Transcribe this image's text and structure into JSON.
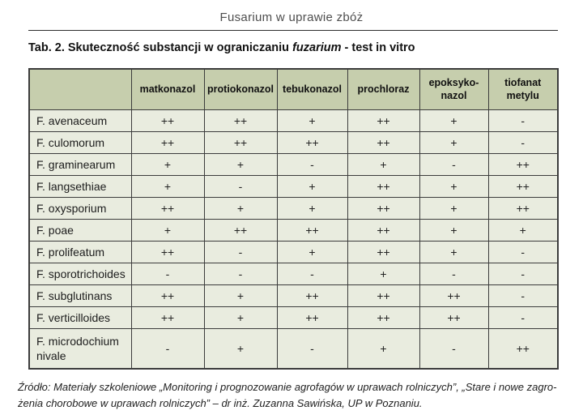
{
  "page_header": {
    "title": "Fusarium w uprawie zbóż"
  },
  "caption": {
    "part1": "Tab. 2. Skuteczność substancji w ograniczaniu ",
    "emphasis": "fuzarium",
    "part2": " - test in vitro"
  },
  "table": {
    "corner_label": "",
    "columns": [
      "matkonazol",
      "protiokonazol",
      "tebukonazol",
      "prochloraz",
      "epoksyko-\nnazol",
      "tiofanat\nmetylu"
    ],
    "rows": [
      {
        "name": "F. avenaceum",
        "values": [
          "++",
          "++",
          "+",
          "++",
          "+",
          "-"
        ]
      },
      {
        "name": "F. culomorum",
        "values": [
          "++",
          "++",
          "++",
          "++",
          "+",
          "-"
        ]
      },
      {
        "name": "F. graminearum",
        "values": [
          "+",
          "+",
          "-",
          "+",
          "-",
          "++"
        ]
      },
      {
        "name": "F. langsethiae",
        "values": [
          "+",
          "-",
          "+",
          "++",
          "+",
          "++"
        ]
      },
      {
        "name": "F. oxysporium",
        "values": [
          "++",
          "+",
          "+",
          "++",
          "+",
          "++"
        ]
      },
      {
        "name": "F. poae",
        "values": [
          "+",
          "++",
          "++",
          "++",
          "+",
          "+"
        ]
      },
      {
        "name": "F. prolifeatum",
        "values": [
          "++",
          "-",
          "+",
          "++",
          "+",
          "-"
        ]
      },
      {
        "name": "F. sporotrichoides",
        "values": [
          "-",
          "-",
          "-",
          "+",
          "-",
          "-"
        ]
      },
      {
        "name": "F. subglutinans",
        "values": [
          "++",
          "+",
          "++",
          "++",
          "++",
          "-"
        ]
      },
      {
        "name": "F. verticilloides",
        "values": [
          "++",
          "+",
          "++",
          "++",
          "++",
          "-"
        ]
      },
      {
        "name": "F. microdochium nivale",
        "values": [
          "-",
          "+",
          "-",
          "+",
          "-",
          "++"
        ]
      }
    ]
  },
  "footer": {
    "line1": "Źródło: Materiały szkoleniowe „Monitoring i prognozowanie agrofagów w uprawach rolniczych”, „Stare i nowe zagro-",
    "line2": "żenia chorobowe w uprawach rolniczych” – dr inż. Zuzanna Sawińska, UP w Poznaniu."
  },
  "colors": {
    "header_bg": "#c6cead",
    "row_bg": "#e9ecdf",
    "border": "#3c3c3c"
  }
}
